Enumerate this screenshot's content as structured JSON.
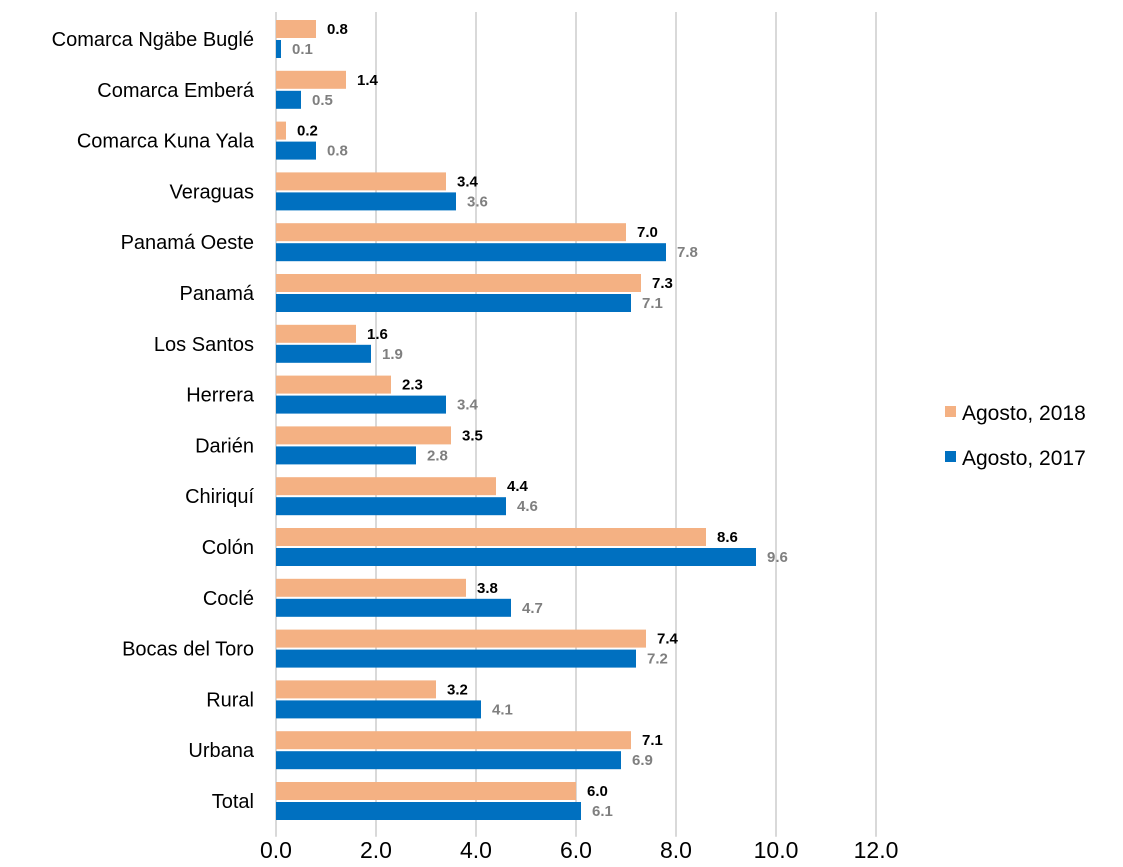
{
  "chart_data": {
    "type": "bar",
    "orientation": "horizontal",
    "categories": [
      "Comarca Ngäbe Buglé",
      "Comarca Emberá",
      "Comarca Kuna Yala",
      "Veraguas",
      "Panamá Oeste",
      "Panamá",
      "Los Santos",
      "Herrera",
      "Darién",
      "Chiriquí",
      "Colón",
      "Coclé",
      "Bocas del Toro",
      "Rural",
      "Urbana",
      "Total"
    ],
    "series": [
      {
        "name": "Agosto, 2018",
        "color": "#f4b183",
        "label_color": "#000000",
        "values": [
          0.8,
          1.4,
          0.2,
          3.4,
          7.0,
          7.3,
          1.6,
          2.3,
          3.5,
          4.4,
          8.6,
          3.8,
          7.4,
          3.2,
          7.1,
          6.0
        ]
      },
      {
        "name": "Agosto, 2017",
        "color": "#0070c0",
        "label_color": "#7f7f7f",
        "values": [
          0.1,
          0.5,
          0.8,
          3.6,
          7.8,
          7.1,
          1.9,
          3.4,
          2.8,
          4.6,
          9.6,
          4.7,
          7.2,
          4.1,
          6.9,
          6.1
        ]
      }
    ],
    "xlim": [
      0,
      12
    ],
    "x_ticks": [
      "0.0",
      "2.0",
      "4.0",
      "6.0",
      "8.0",
      "10.0",
      "12.0"
    ],
    "grid": "vertical",
    "legend_position": "right",
    "title": "",
    "xlabel": "",
    "ylabel": ""
  }
}
